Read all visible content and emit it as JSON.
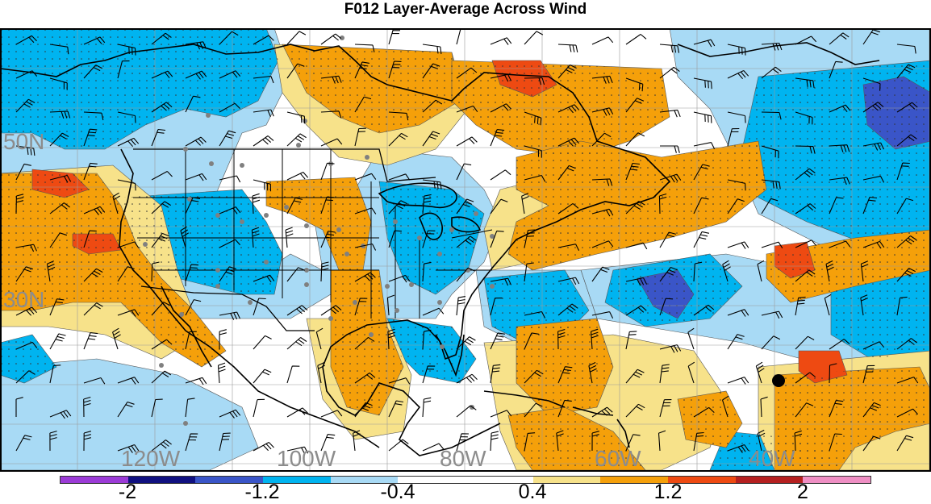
{
  "title": "F012 Layer-Average Across Wind",
  "longitude_labels": [
    "120W",
    "100W",
    "80W",
    "60W",
    "40W"
  ],
  "latitude_labels": [
    "50N",
    "30N"
  ],
  "colorbar": {
    "colors": [
      "#9b3bd6",
      "#101080",
      "#3a55c8",
      "#00b4f0",
      "#a8daf5",
      "#ffffff",
      "#ffffff",
      "#f7e28a",
      "#f5a00a",
      "#ee4a12",
      "#b52020",
      "#ef8fc4"
    ],
    "tick_labels": [
      "-2",
      "-1.2",
      "-0.4",
      "0.4",
      "1.2",
      "2"
    ]
  },
  "palette": {
    "neg_strong": "#3a55c8",
    "neg": "#00b4f0",
    "neg_light": "#a8daf5",
    "pos_light": "#f7e28a",
    "pos": "#f5a00a",
    "pos_strong": "#ee4a12"
  },
  "icons": {
    "wind_barb": "wind-barb-icon",
    "station": "station-dot-icon",
    "marker": "location-marker-icon"
  }
}
